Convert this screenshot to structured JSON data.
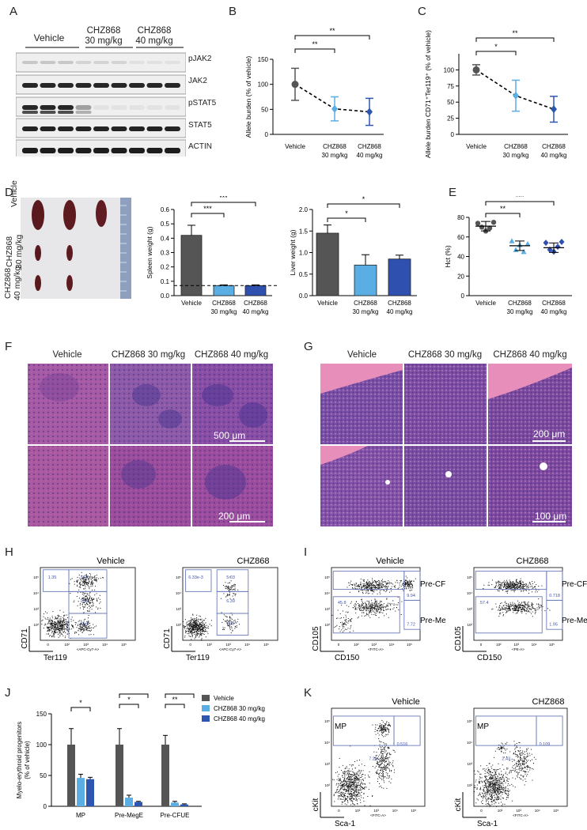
{
  "panels": [
    "A",
    "B",
    "C",
    "D",
    "E",
    "F",
    "G",
    "H",
    "I",
    "J",
    "K"
  ],
  "panelA": {
    "groups": [
      "Vehicle",
      "CHZ868\n30 mg/kg",
      "CHZ868\n40 mg/kg"
    ],
    "group1": "Vehicle",
    "group2a": "CHZ868",
    "group2b": "30 mg/kg",
    "group3a": "CHZ868",
    "group3b": "40 mg/kg",
    "blots": [
      "pJAK2",
      "JAK2",
      "pSTAT5",
      "STAT5",
      "ACTIN"
    ]
  },
  "panelB": {
    "chart_data": {
      "type": "line",
      "categories": [
        "Vehicle",
        "CHZ868 30 mg/kg",
        "CHZ868 40 mg/kg"
      ],
      "values": [
        100,
        51,
        45
      ],
      "errors": [
        32,
        24,
        27
      ],
      "ylabel": "Allele burden (% of vehicle)",
      "ylim": [
        0,
        150
      ],
      "yticks": [
        "0",
        "50",
        "100",
        "150"
      ],
      "sig": [
        "**",
        "**"
      ]
    }
  },
  "panelC": {
    "chart_data": {
      "type": "line",
      "categories": [
        "Vehicle",
        "CHZ868 30 mg/kg",
        "CHZ868 40 mg/kg"
      ],
      "values": [
        100,
        60,
        39
      ],
      "errors": [
        8,
        24,
        20
      ],
      "ylabel": "Allele burden CD71⁺Ter119⁺ (% of vehicle)",
      "ylim": [
        0,
        125
      ],
      "yticks": [
        "0",
        "25",
        "50",
        "75",
        "100"
      ],
      "sig": [
        "*",
        "**"
      ]
    }
  },
  "panelD": {
    "photo_labels": [
      "Vehicle",
      "CHZ868\n30 mg/kg",
      "CHZ868\n40 mg/kg"
    ],
    "spleen": {
      "chart_data": {
        "type": "bar",
        "categories": [
          "Vehicle",
          "CHZ868 30 mg/kg",
          "CHZ868 40 mg/kg"
        ],
        "values": [
          0.42,
          0.07,
          0.07
        ],
        "errors": [
          0.07,
          0.005,
          0.005
        ],
        "ylabel": "Spleen weight (g)",
        "ylim": [
          0,
          0.6
        ],
        "yticks": [
          "0.0",
          "0.1",
          "0.2",
          "0.3",
          "0.4",
          "0.5",
          "0.6"
        ],
        "sig": [
          "***",
          "***"
        ],
        "dashed_reference": 0.07
      }
    },
    "liver": {
      "chart_data": {
        "type": "bar",
        "categories": [
          "Vehicle",
          "CHZ868 30 mg/kg",
          "CHZ868 40 mg/kg"
        ],
        "values": [
          1.45,
          0.71,
          0.85
        ],
        "errors": [
          0.19,
          0.24,
          0.09
        ],
        "ylabel": "Liver weight (g)",
        "ylim": [
          0,
          2.0
        ],
        "yticks": [
          "0.0",
          "0.5",
          "1.0",
          "1.5",
          "2.0"
        ],
        "sig": [
          "*",
          "*"
        ]
      }
    }
  },
  "panelE": {
    "chart_data": {
      "type": "scatter",
      "categories": [
        "Vehicle",
        "CHZ868 30 mg/kg",
        "CHZ868 40 mg/kg"
      ],
      "means": [
        71,
        51,
        49
      ],
      "points": [
        [
          74,
          70,
          66,
          69,
          75
        ],
        [
          56,
          47,
          52,
          45,
          53
        ],
        [
          54,
          47,
          45,
          50,
          55
        ]
      ],
      "ylabel": "Hct (%)",
      "ylim": [
        0,
        80
      ],
      "yticks": [
        "0",
        "20",
        "40",
        "60",
        "80"
      ],
      "sig": [
        "**",
        "***"
      ]
    }
  },
  "panelF": {
    "headers": [
      "Vehicle",
      "CHZ868 30 mg/kg",
      "CHZ868 40 mg/kg"
    ],
    "scale_top": "500 μm",
    "scale_bottom": "200 μm"
  },
  "panelG": {
    "headers": [
      "Vehicle",
      "CHZ868 30 mg/kg",
      "CHZ868 40 mg/kg"
    ],
    "scale_top": "200 μm",
    "scale_bottom": "100 μm"
  },
  "panelH": {
    "left": {
      "title": "Vehicle",
      "gates": [
        "1.35",
        "17.7",
        "13.2",
        "25.1"
      ]
    },
    "right": {
      "title": "CHZ868",
      "gates": [
        "6.33e-3",
        "5.03",
        "6.39",
        "11.6"
      ]
    },
    "ylabel": "CD71",
    "xlabel": "Ter119",
    "xaxis": "<APC-Cy7-A>"
  },
  "panelI": {
    "left": {
      "title": "Vehicle",
      "gates": [
        "45.8",
        "9.94",
        "7.72"
      ]
    },
    "right": {
      "title": "CHZ868",
      "gates": [
        "57.4",
        "0.718",
        "1.95"
      ]
    },
    "pop_top": "Pre-CFU-E",
    "pop_bottom": "Pre-MegE",
    "ylabel": "CD105",
    "xlabel": "CD150",
    "xaxis": "<FITC-A>",
    "xaxis2": "<PE-A>"
  },
  "panelJ": {
    "chart_data": {
      "type": "bar",
      "categories": [
        "MP",
        "Pre-MegE",
        "Pre-CFUE"
      ],
      "series": [
        {
          "name": "Vehicle",
          "values": [
            100,
            100,
            100
          ],
          "errors": [
            26,
            26,
            15
          ],
          "color": "#555555"
        },
        {
          "name": "CHZ868 30 mg/kg",
          "values": [
            46,
            14,
            6
          ],
          "errors": [
            6,
            4,
            2
          ],
          "color": "#5aaee4"
        },
        {
          "name": "CHZ868 40 mg/kg",
          "values": [
            44,
            7,
            3
          ],
          "errors": [
            3,
            1,
            1
          ],
          "color": "#2e56b0"
        }
      ],
      "ylabel": "Myelo-erythroid progenitors (% of vehicle)",
      "ylim": [
        0,
        150
      ],
      "yticks": [
        "0",
        "50",
        "100",
        "150"
      ],
      "sig": [
        "*",
        "**",
        "*",
        "***",
        "**"
      ]
    }
  },
  "panelK": {
    "left": {
      "title": "Vehicle",
      "gates": [
        "7.23",
        "0.516"
      ]
    },
    "right": {
      "title": "CHZ868",
      "gates": [
        "2.43",
        "0.109"
      ]
    },
    "gate_name": "MP",
    "ylabel": "cKit",
    "xlabel": "Sca-1",
    "xaxis": "<FITC-A>"
  }
}
